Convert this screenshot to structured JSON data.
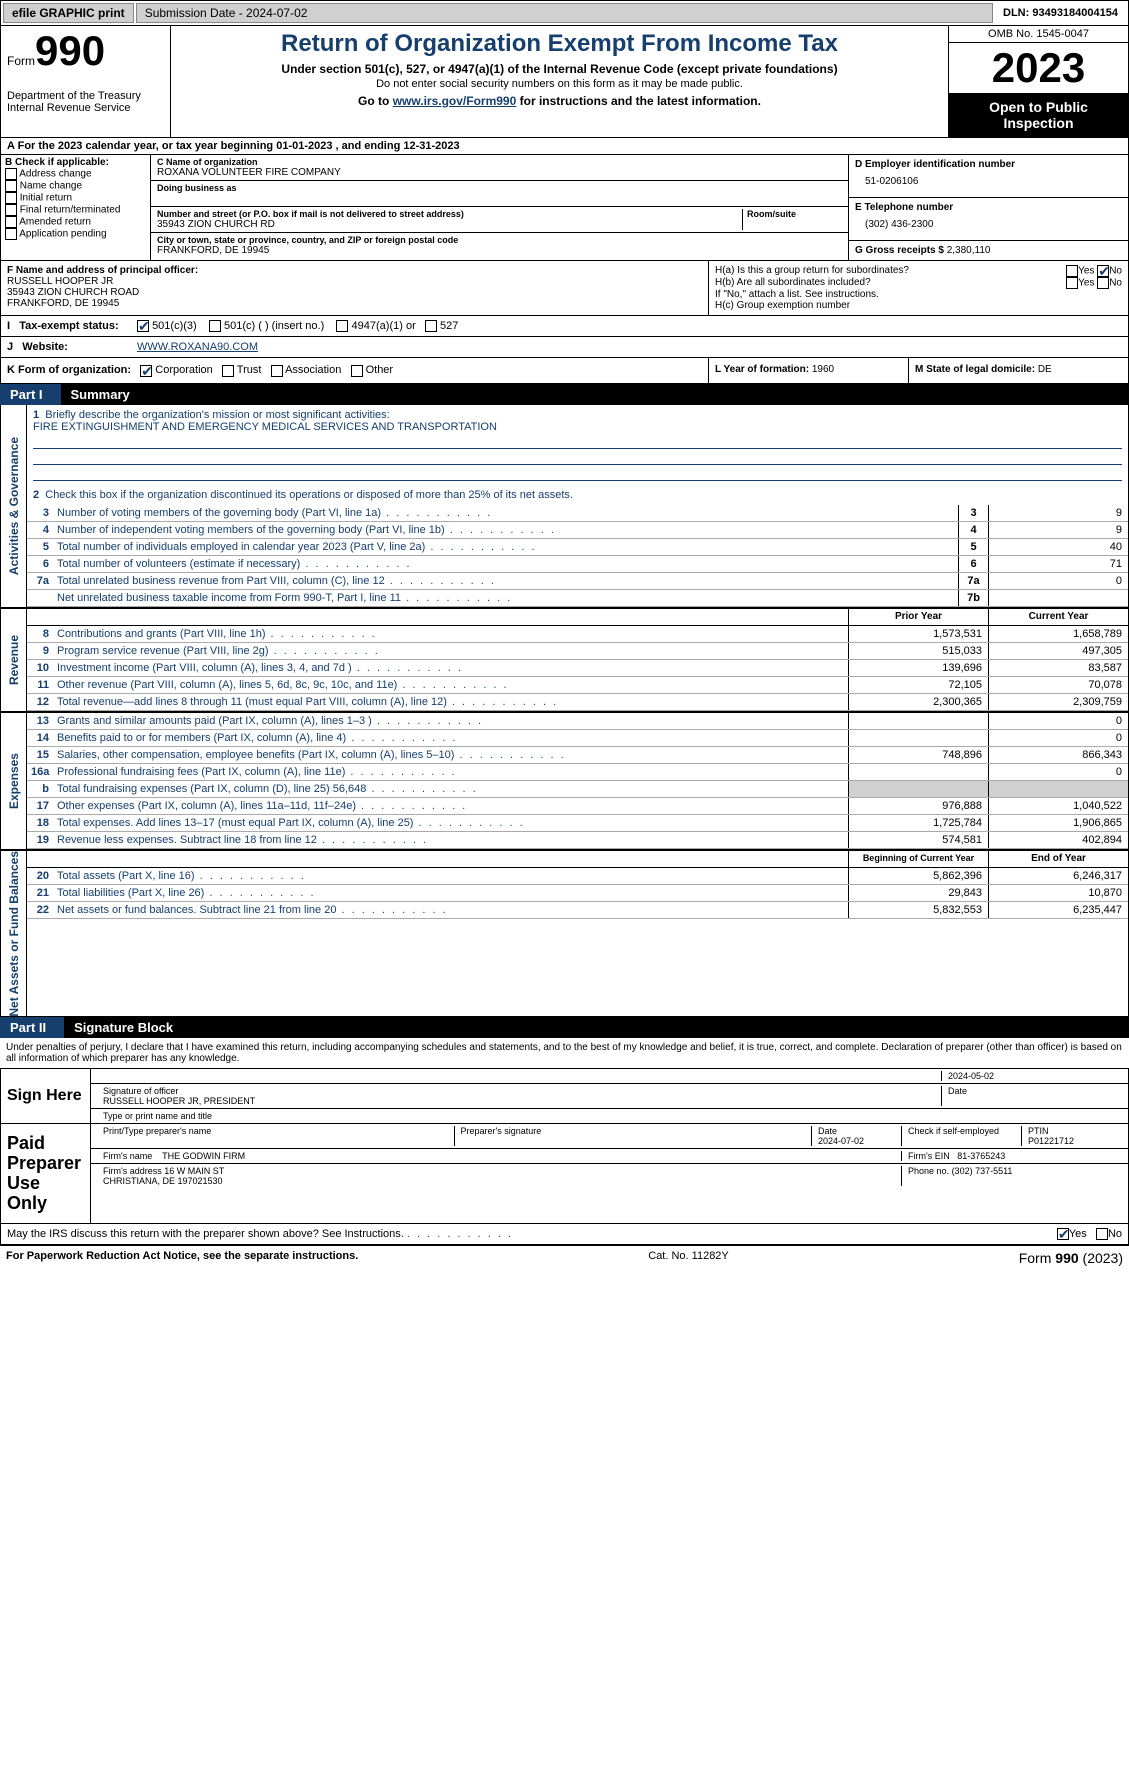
{
  "topbar": {
    "efile": "efile GRAPHIC print",
    "submission": "Submission Date - 2024-07-02",
    "dln": "DLN: 93493184004154"
  },
  "header": {
    "form_word": "Form",
    "form_num": "990",
    "dept": "Department of the Treasury\nInternal Revenue Service",
    "title": "Return of Organization Exempt From Income Tax",
    "sub1": "Under section 501(c), 527, or 4947(a)(1) of the Internal Revenue Code (except private foundations)",
    "sub2": "Do not enter social security numbers on this form as it may be made public.",
    "sub3_prefix": "Go to ",
    "sub3_link": "www.irs.gov/Form990",
    "sub3_suffix": " for instructions and the latest information.",
    "omb": "OMB No. 1545-0047",
    "year": "2023",
    "open": "Open to Public Inspection"
  },
  "A": {
    "text": "For the 2023 calendar year, or tax year beginning 01-01-2023   , and ending 12-31-2023"
  },
  "B": {
    "label": "B Check if applicable:",
    "opts": [
      "Address change",
      "Name change",
      "Initial return",
      "Final return/terminated",
      "Amended return",
      "Application pending"
    ]
  },
  "C": {
    "name_lbl": "C Name of organization",
    "name": "ROXANA VOLUNTEER FIRE COMPANY",
    "dba_lbl": "Doing business as",
    "street_lbl": "Number and street (or P.O. box if mail is not delivered to street address)",
    "room_lbl": "Room/suite",
    "street": "35943 ZION CHURCH RD",
    "city_lbl": "City or town, state or province, country, and ZIP or foreign postal code",
    "city": "FRANKFORD, DE  19945"
  },
  "D": {
    "lbl": "D Employer identification number",
    "val": "51-0206106"
  },
  "E": {
    "lbl": "E Telephone number",
    "val": "(302) 436-2300"
  },
  "G": {
    "lbl": "G Gross receipts $",
    "val": "2,380,110"
  },
  "F": {
    "lbl": "F  Name and address of principal officer:",
    "name": "RUSSELL HOOPER JR",
    "addr1": "35943 ZION CHURCH ROAD",
    "addr2": "FRANKFORD, DE  19945"
  },
  "H": {
    "a": "H(a)  Is this a group return for subordinates?",
    "b": "H(b)  Are all subordinates included?",
    "note": "If \"No,\" attach a list. See instructions.",
    "c": "H(c)  Group exemption number",
    "yes": "Yes",
    "no": "No"
  },
  "I": {
    "lbl": "Tax-exempt status:",
    "opts": [
      "501(c)(3)",
      "501(c) (  ) (insert no.)",
      "4947(a)(1) or",
      "527"
    ]
  },
  "J": {
    "lbl": "Website:",
    "val": "WWW.ROXANA90.COM"
  },
  "K": {
    "lbl": "K Form of organization:",
    "opts": [
      "Corporation",
      "Trust",
      "Association",
      "Other"
    ]
  },
  "L": {
    "lbl": "L Year of formation:",
    "val": "1960"
  },
  "M": {
    "lbl": "M State of legal domicile:",
    "val": "DE"
  },
  "part1": {
    "label": "Part I",
    "name": "Summary"
  },
  "summary": {
    "mission_lbl": "Briefly describe the organization's mission or most significant activities:",
    "mission": "FIRE EXTINGUISHMENT AND EMERGENCY MEDICAL SERVICES AND TRANSPORTATION",
    "line2": "Check this box      if the organization discontinued its operations or disposed of more than 25% of its net assets.",
    "rows_gov": [
      {
        "n": "3",
        "d": "Number of voting members of the governing body (Part VI, line 1a)",
        "box": "3",
        "v": "9"
      },
      {
        "n": "4",
        "d": "Number of independent voting members of the governing body (Part VI, line 1b)",
        "box": "4",
        "v": "9"
      },
      {
        "n": "5",
        "d": "Total number of individuals employed in calendar year 2023 (Part V, line 2a)",
        "box": "5",
        "v": "40"
      },
      {
        "n": "6",
        "d": "Total number of volunteers (estimate if necessary)",
        "box": "6",
        "v": "71"
      },
      {
        "n": "7a",
        "d": "Total unrelated business revenue from Part VIII, column (C), line 12",
        "box": "7a",
        "v": "0"
      },
      {
        "n": "",
        "d": "Net unrelated business taxable income from Form 990-T, Part I, line 11",
        "box": "7b",
        "v": ""
      }
    ],
    "col_prior": "Prior Year",
    "col_curr": "Current Year",
    "rows_rev": [
      {
        "n": "8",
        "d": "Contributions and grants (Part VIII, line 1h)",
        "p": "1,573,531",
        "c": "1,658,789"
      },
      {
        "n": "9",
        "d": "Program service revenue (Part VIII, line 2g)",
        "p": "515,033",
        "c": "497,305"
      },
      {
        "n": "10",
        "d": "Investment income (Part VIII, column (A), lines 3, 4, and 7d )",
        "p": "139,696",
        "c": "83,587"
      },
      {
        "n": "11",
        "d": "Other revenue (Part VIII, column (A), lines 5, 6d, 8c, 9c, 10c, and 11e)",
        "p": "72,105",
        "c": "70,078"
      },
      {
        "n": "12",
        "d": "Total revenue—add lines 8 through 11 (must equal Part VIII, column (A), line 12)",
        "p": "2,300,365",
        "c": "2,309,759"
      }
    ],
    "rows_exp": [
      {
        "n": "13",
        "d": "Grants and similar amounts paid (Part IX, column (A), lines 1–3 )",
        "p": "",
        "c": "0"
      },
      {
        "n": "14",
        "d": "Benefits paid to or for members (Part IX, column (A), line 4)",
        "p": "",
        "c": "0"
      },
      {
        "n": "15",
        "d": "Salaries, other compensation, employee benefits (Part IX, column (A), lines 5–10)",
        "p": "748,896",
        "c": "866,343"
      },
      {
        "n": "16a",
        "d": "Professional fundraising fees (Part IX, column (A), line 11e)",
        "p": "",
        "c": "0"
      },
      {
        "n": "b",
        "d": "Total fundraising expenses (Part IX, column (D), line 25) 56,648",
        "p": "",
        "c": "",
        "grey": true
      },
      {
        "n": "17",
        "d": "Other expenses (Part IX, column (A), lines 11a–11d, 11f–24e)",
        "p": "976,888",
        "c": "1,040,522"
      },
      {
        "n": "18",
        "d": "Total expenses. Add lines 13–17 (must equal Part IX, column (A), line 25)",
        "p": "1,725,784",
        "c": "1,906,865"
      },
      {
        "n": "19",
        "d": "Revenue less expenses. Subtract line 18 from line 12",
        "p": "574,581",
        "c": "402,894"
      }
    ],
    "col_begin": "Beginning of Current Year",
    "col_end": "End of Year",
    "rows_net": [
      {
        "n": "20",
        "d": "Total assets (Part X, line 16)",
        "p": "5,862,396",
        "c": "6,246,317"
      },
      {
        "n": "21",
        "d": "Total liabilities (Part X, line 26)",
        "p": "29,843",
        "c": "10,870"
      },
      {
        "n": "22",
        "d": "Net assets or fund balances. Subtract line 21 from line 20",
        "p": "5,832,553",
        "c": "6,235,447"
      }
    ],
    "side_gov": "Activities & Governance",
    "side_rev": "Revenue",
    "side_exp": "Expenses",
    "side_net": "Net Assets or Fund Balances"
  },
  "part2": {
    "label": "Part II",
    "name": "Signature Block"
  },
  "sig": {
    "perjury": "Under penalties of perjury, I declare that I have examined this return, including accompanying schedules and statements, and to the best of my knowledge and belief, it is true, correct, and complete. Declaration of preparer (other than officer) is based on all information of which preparer has any knowledge.",
    "sign_here": "Sign Here",
    "date": "2024-05-02",
    "sig_lbl": "Signature of officer",
    "officer": "RUSSELL HOOPER JR, PRESIDENT",
    "type_lbl": "Type or print name and title",
    "date_lbl": "Date",
    "paid": "Paid Preparer Use Only",
    "prep_name_lbl": "Print/Type preparer's name",
    "prep_sig_lbl": "Preparer's signature",
    "prep_date": "2024-07-02",
    "self_emp": "Check       if self-employed",
    "ptin_lbl": "PTIN",
    "ptin": "P01221712",
    "firm_name_lbl": "Firm's name",
    "firm_name": "THE GODWIN FIRM",
    "firm_ein_lbl": "Firm's EIN",
    "firm_ein": "81-3765243",
    "firm_addr_lbl": "Firm's address",
    "firm_addr": "16 W MAIN ST\nCHRISTIANA, DE  197021530",
    "phone_lbl": "Phone no.",
    "phone": "(302) 737-5511",
    "discuss": "May the IRS discuss this return with the preparer shown above? See Instructions.",
    "yes": "Yes",
    "no": "No"
  },
  "footer": {
    "left": "For Paperwork Reduction Act Notice, see the separate instructions.",
    "mid": "Cat. No. 11282Y",
    "right_form": "Form ",
    "right_num": "990",
    "right_year": " (2023)"
  }
}
